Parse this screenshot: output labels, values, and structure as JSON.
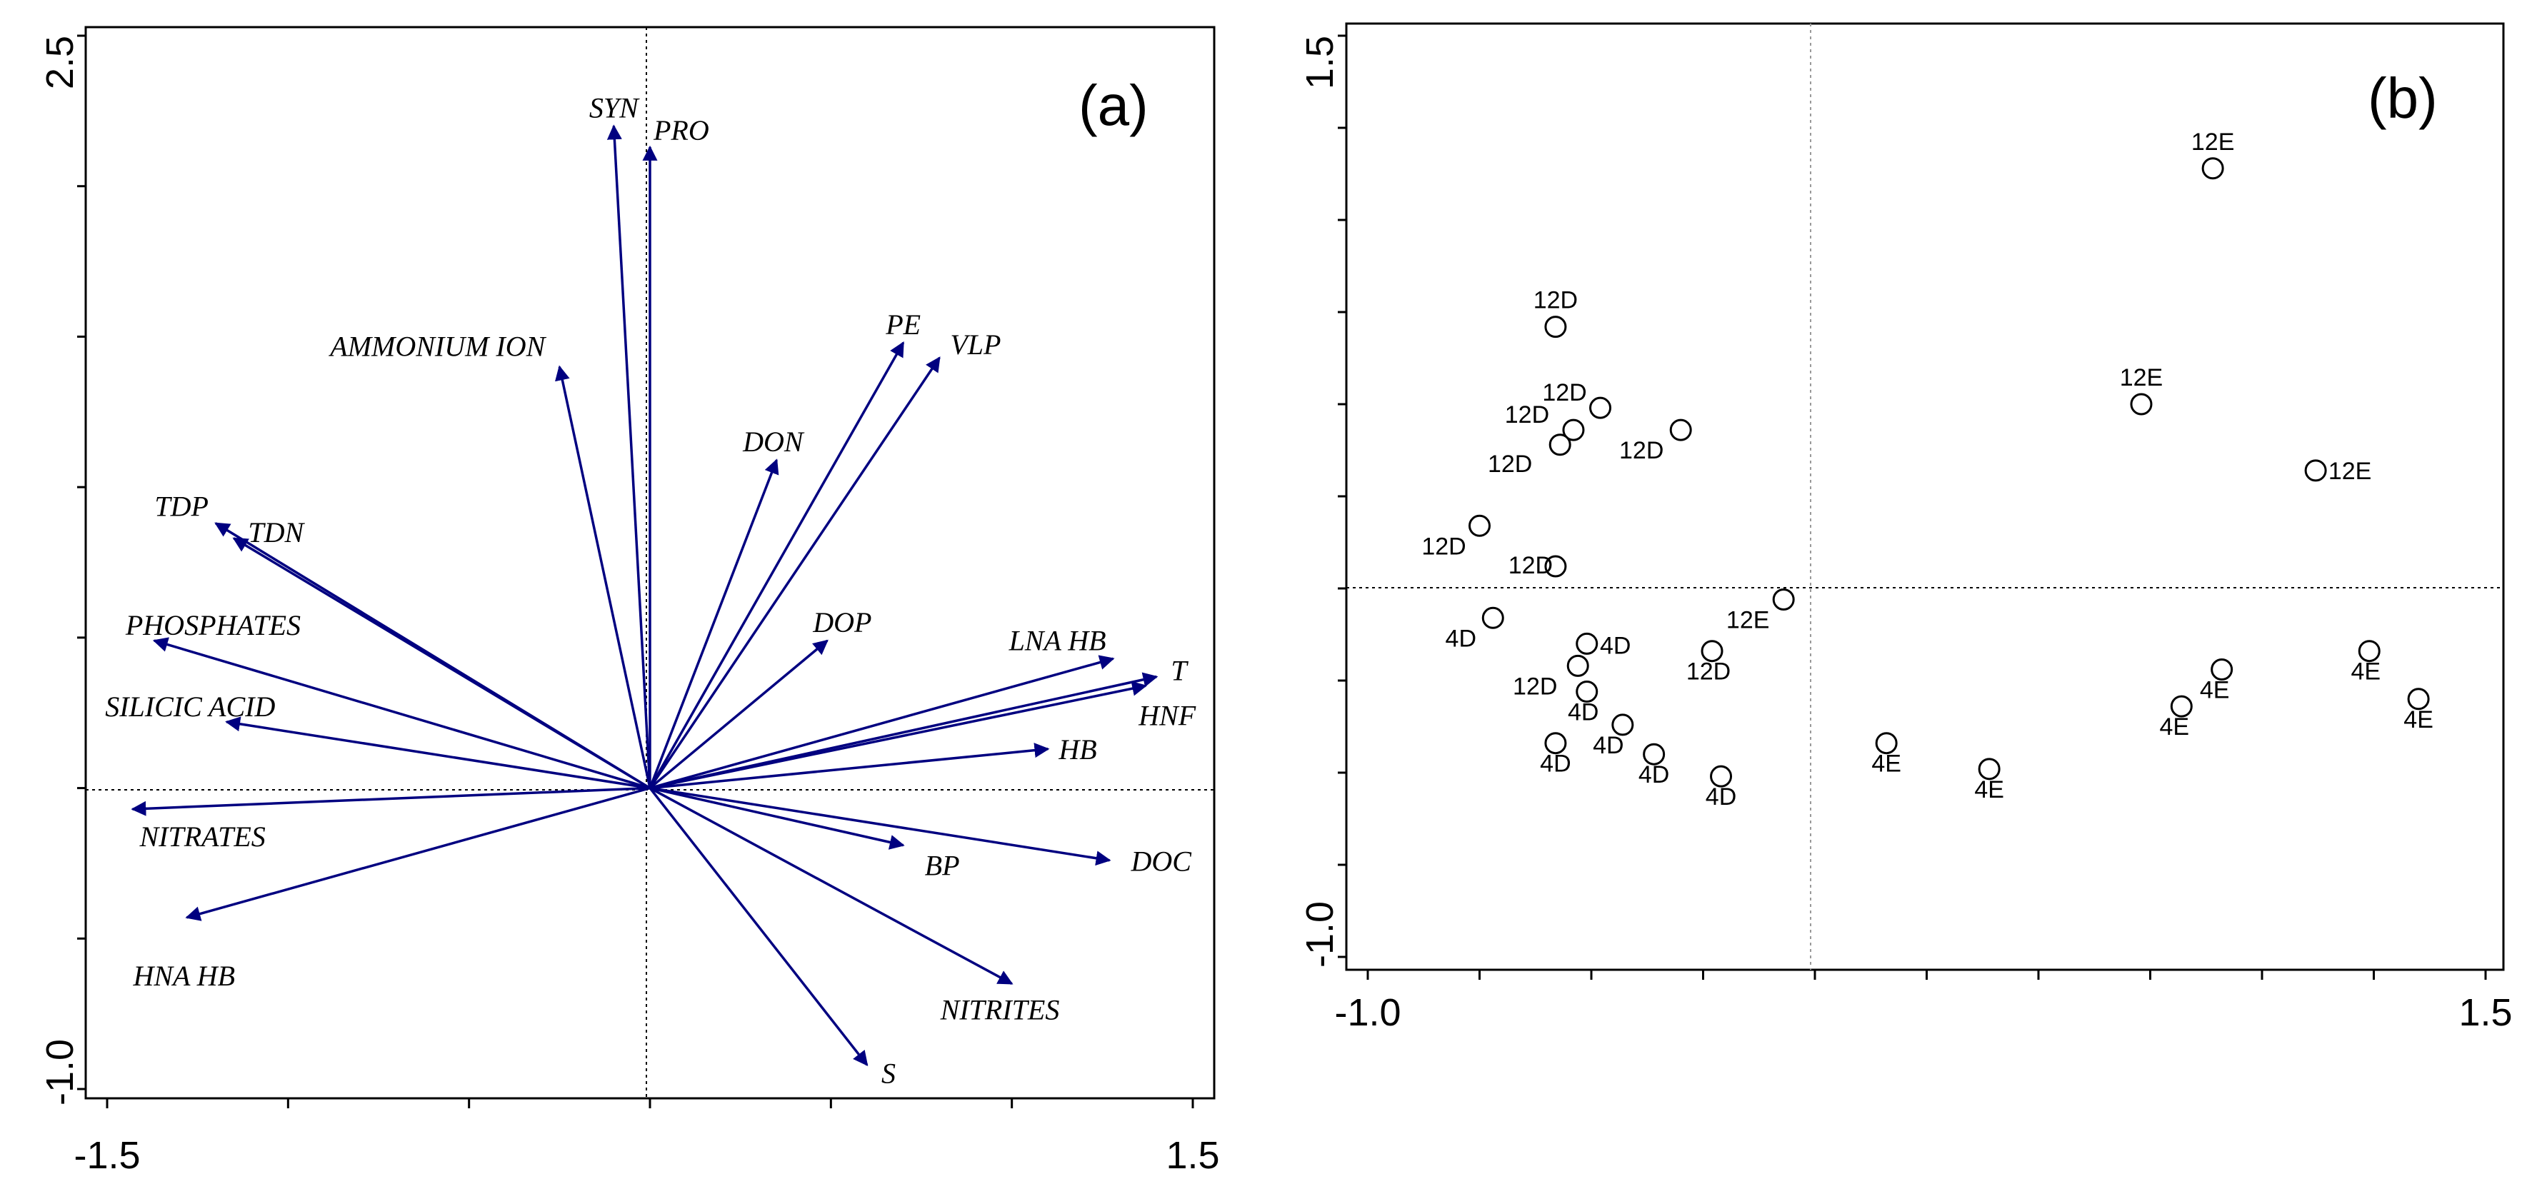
{
  "chart_data": [
    {
      "type": "scatter",
      "subtype": "biplot-vectors",
      "panel_label": "(a)",
      "xlim": [
        -1.5,
        1.5
      ],
      "ylim": [
        -1.0,
        2.5
      ],
      "x_tick_labels": [
        "-1.5",
        "1.5"
      ],
      "y_tick_labels": [
        "2.5",
        "-1.0"
      ],
      "vectors": [
        {
          "name": "SYN",
          "x": -0.1,
          "y": 2.2
        },
        {
          "name": "PRO",
          "x": 0.0,
          "y": 2.13
        },
        {
          "name": "AMMONIUM ION",
          "x": -0.25,
          "y": 1.4
        },
        {
          "name": "PE",
          "x": 0.7,
          "y": 1.48
        },
        {
          "name": "VLP",
          "x": 0.8,
          "y": 1.43
        },
        {
          "name": "DON",
          "x": 0.35,
          "y": 1.09
        },
        {
          "name": "TDP",
          "x": -1.2,
          "y": 0.88
        },
        {
          "name": "TDN",
          "x": -1.15,
          "y": 0.83
        },
        {
          "name": "PHOSPHATES",
          "x": -1.37,
          "y": 0.49
        },
        {
          "name": "DOP",
          "x": 0.49,
          "y": 0.49
        },
        {
          "name": "LNA HB",
          "x": 1.28,
          "y": 0.43
        },
        {
          "name": "T",
          "x": 1.4,
          "y": 0.37
        },
        {
          "name": "HNF",
          "x": 1.37,
          "y": 0.34
        },
        {
          "name": "SILICIC ACID",
          "x": -1.17,
          "y": 0.22
        },
        {
          "name": "HB",
          "x": 1.1,
          "y": 0.13
        },
        {
          "name": "NITRATES",
          "x": -1.43,
          "y": -0.07
        },
        {
          "name": "BP",
          "x": 0.7,
          "y": -0.19
        },
        {
          "name": "DOC",
          "x": 1.27,
          "y": -0.24
        },
        {
          "name": "HNA HB",
          "x": -1.28,
          "y": -0.43
        },
        {
          "name": "NITRITES",
          "x": 1.0,
          "y": -0.65
        },
        {
          "name": "S",
          "x": 0.6,
          "y": -0.92
        }
      ]
    },
    {
      "type": "scatter",
      "panel_label": "(b)",
      "xlim": [
        -1.0,
        1.5
      ],
      "ylim": [
        -1.0,
        1.5
      ],
      "x_tick_labels": [
        "-1.0",
        "1.5"
      ],
      "y_tick_labels": [
        "1.5",
        "-1.0"
      ],
      "points": [
        {
          "label": "12E",
          "x": 0.89,
          "y": 1.14
        },
        {
          "label": "12D",
          "x": -0.58,
          "y": 0.71
        },
        {
          "label": "12D",
          "x": -0.48,
          "y": 0.49
        },
        {
          "label": "12D",
          "x": -0.54,
          "y": 0.43
        },
        {
          "label": "12D",
          "x": -0.57,
          "y": 0.39
        },
        {
          "label": "12D",
          "x": -0.3,
          "y": 0.43
        },
        {
          "label": "12E",
          "x": 0.73,
          "y": 0.5
        },
        {
          "label": "12E",
          "x": 1.12,
          "y": 0.32
        },
        {
          "label": "12D",
          "x": -0.75,
          "y": 0.17
        },
        {
          "label": "12D",
          "x": -0.58,
          "y": 0.06
        },
        {
          "label": "12E",
          "x": -0.07,
          "y": -0.03
        },
        {
          "label": "4D",
          "x": -0.72,
          "y": -0.08
        },
        {
          "label": "4D",
          "x": -0.51,
          "y": -0.15
        },
        {
          "label": "12D",
          "x": -0.53,
          "y": -0.21
        },
        {
          "label": "4D",
          "x": -0.51,
          "y": -0.28
        },
        {
          "label": "12D",
          "x": -0.23,
          "y": -0.17
        },
        {
          "label": "4D",
          "x": -0.43,
          "y": -0.37
        },
        {
          "label": "4D",
          "x": -0.36,
          "y": -0.45
        },
        {
          "label": "4D",
          "x": -0.58,
          "y": -0.42
        },
        {
          "label": "4D",
          "x": -0.21,
          "y": -0.51
        },
        {
          "label": "4E",
          "x": 0.16,
          "y": -0.42
        },
        {
          "label": "4E",
          "x": 0.39,
          "y": -0.49
        },
        {
          "label": "4E",
          "x": 0.82,
          "y": -0.32
        },
        {
          "label": "4E",
          "x": 0.91,
          "y": -0.22
        },
        {
          "label": "4E",
          "x": 1.24,
          "y": -0.17
        },
        {
          "label": "4E",
          "x": 1.35,
          "y": -0.3
        }
      ]
    }
  ]
}
